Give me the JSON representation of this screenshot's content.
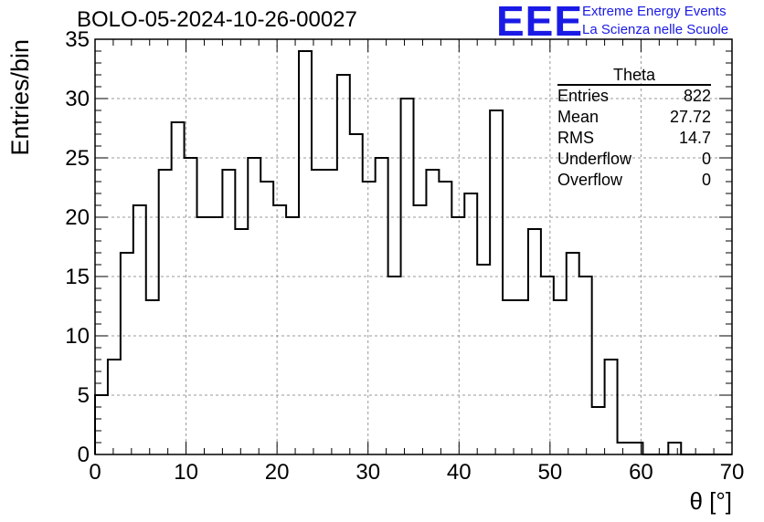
{
  "title": "BOLO-05-2024-10-26-00027",
  "logo": {
    "text": "EEE",
    "line1": "Extreme Energy Events",
    "line2": "La Scienza nelle Scuole",
    "color": "#1a1ae6"
  },
  "stats": {
    "name": "Theta",
    "rows": [
      {
        "label": "Entries",
        "value": "822"
      },
      {
        "label": "Mean",
        "value": "27.72"
      },
      {
        "label": "RMS",
        "value": "14.7"
      },
      {
        "label": "Underflow",
        "value": "0"
      },
      {
        "label": "Overflow",
        "value": "0"
      }
    ]
  },
  "chart_data": {
    "type": "bar",
    "style": "step-histogram",
    "xlabel": "θ [°]",
    "ylabel": "Entries/bin",
    "xlim": [
      0,
      70
    ],
    "ylim": [
      0,
      35
    ],
    "grid": true,
    "x_ticks": [
      0,
      10,
      20,
      30,
      40,
      50,
      60,
      70
    ],
    "y_ticks": [
      0,
      5,
      10,
      15,
      20,
      25,
      30,
      35
    ],
    "bin_width": 1.4,
    "bin_edges_start": 0,
    "values": [
      5,
      8,
      17,
      21,
      13,
      24,
      28,
      25,
      20,
      20,
      24,
      19,
      25,
      23,
      21,
      20,
      34,
      24,
      24,
      32,
      27,
      23,
      25,
      15,
      30,
      21,
      24,
      23,
      20,
      22,
      16,
      29,
      13,
      13,
      19,
      15,
      13,
      17,
      15,
      4,
      8,
      1,
      1,
      0,
      0,
      1,
      0,
      0,
      0,
      0
    ],
    "line_color": "#000000"
  }
}
